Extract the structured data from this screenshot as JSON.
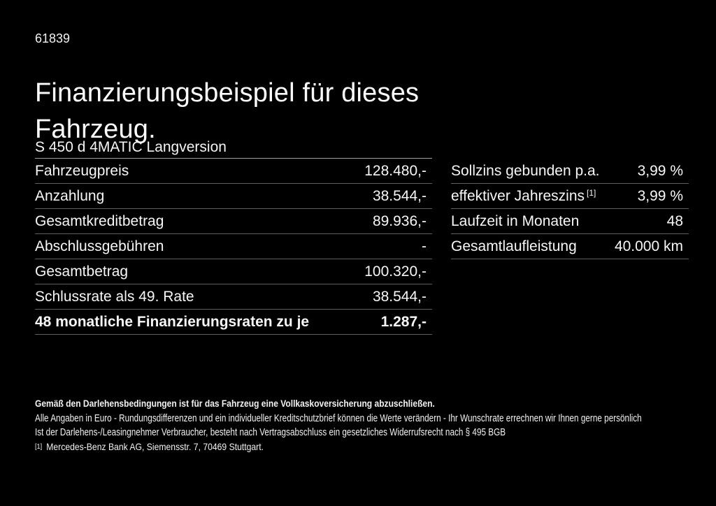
{
  "page": {
    "doc_number": "61839",
    "title": "Finanzierungsbeispiel für dieses\nFahrzeug.",
    "subtitle": "S 450 d 4MATIC Langversion"
  },
  "finance_table": {
    "rows": [
      {
        "label": "Fahrzeugpreis",
        "value": "128.480,-"
      },
      {
        "label": "Anzahlung",
        "value": "38.544,-"
      },
      {
        "label": "Gesamtkreditbetrag",
        "value": "89.936,-"
      },
      {
        "label": "Abschlussgebühren",
        "value": "-"
      },
      {
        "label": "Gesamtbetrag",
        "value": "100.320,-"
      },
      {
        "label": "Schlussrate als 49. Rate",
        "value": "38.544,-"
      },
      {
        "label": "48 monatliche Finanzierungsraten zu je",
        "value": "1.287,-",
        "bold": true
      }
    ]
  },
  "conditions_table": {
    "rows": [
      {
        "label": "Sollzins gebunden p.a.",
        "value": "3,99 %"
      },
      {
        "label": "effektiver Jahreszins",
        "label_sup": "[1]",
        "value": "3,99 %"
      },
      {
        "label": "Laufzeit in Monaten",
        "value": "48"
      },
      {
        "label": "Gesamtlaufleistung",
        "value": "40.000 km"
      }
    ]
  },
  "footer": {
    "insurance_notice": "Gemäß den Darlehensbedingungen ist für das Fahrzeug eine Vollkaskoversicherung abzuschließen.",
    "disclaimer_line1": "Alle Angaben in Euro - Rundungsdifferenzen und ein individueller Kreditschutzbrief können die Werte verändern - Ihr Wunschrate errechnen wir Ihnen gerne persönlich",
    "disclaimer_line2": "Ist der Darlehens-/Leasingnehmer Verbraucher, besteht nach Vertragsabschluss ein gesetzliches Widerrufsrecht nach § 495 BGB",
    "footnote_marker": "[1]",
    "footnote_text": "Mercedes-Benz Bank AG, Siemensstr. 7, 70469 Stuttgart."
  },
  "colors": {
    "background": "#000000",
    "text": "#f7f7f7",
    "row_divider": "#5e5e5e",
    "subtitle_underline": "#a2a2a2"
  }
}
